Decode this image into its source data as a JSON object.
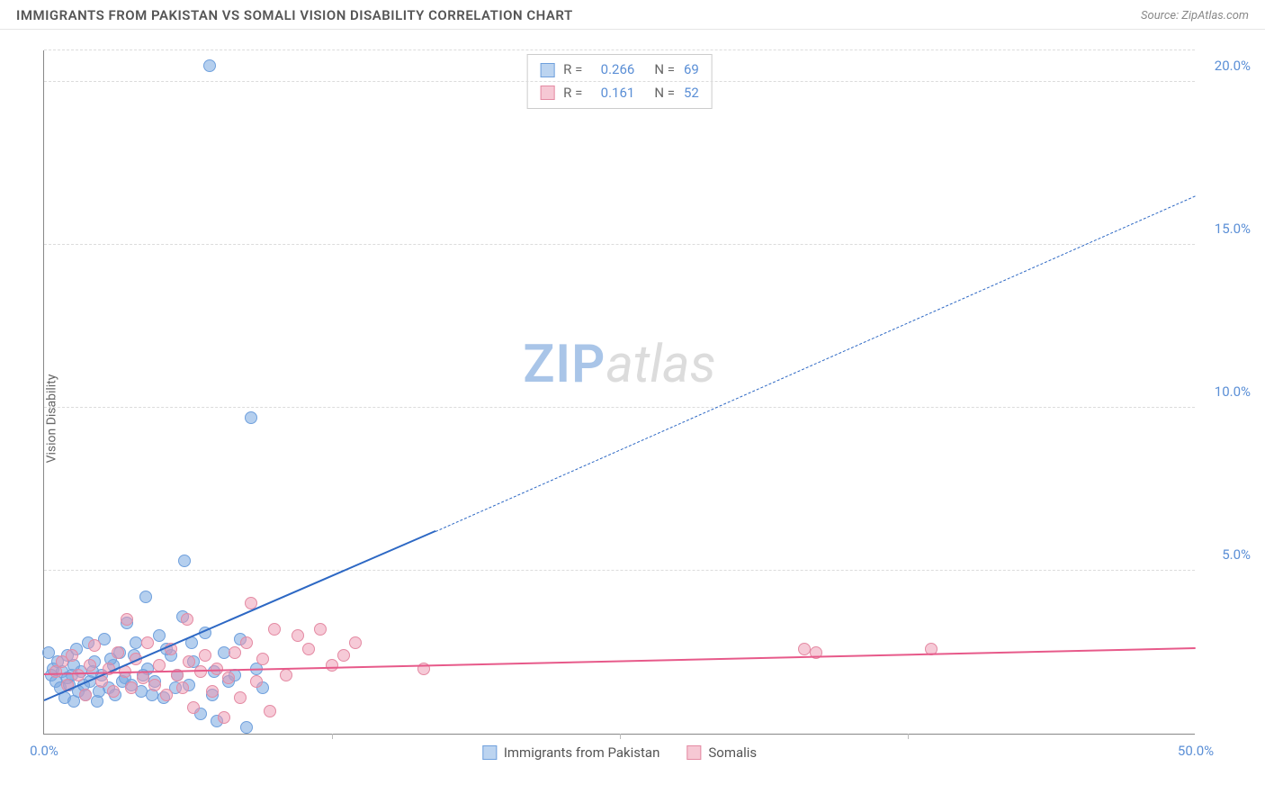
{
  "title": "IMMIGRANTS FROM PAKISTAN VS SOMALI VISION DISABILITY CORRELATION CHART",
  "source": "Source: ZipAtlas.com",
  "y_axis_label": "Vision Disability",
  "watermark": {
    "a": "ZIP",
    "b": "atlas"
  },
  "chart": {
    "type": "scatter",
    "xlim": [
      0,
      50
    ],
    "ylim": [
      0,
      21
    ],
    "x_ticks": [
      0,
      50
    ],
    "x_tick_labels": [
      "0.0%",
      "50.0%"
    ],
    "x_minor_ticks": [
      12.5,
      25,
      37.5
    ],
    "y_ticks": [
      5,
      10,
      15,
      20
    ],
    "y_tick_labels": [
      "5.0%",
      "10.0%",
      "15.0%",
      "20.0%"
    ],
    "y_tick_color": "#5b8fd6",
    "x_tick_color": "#5b8fd6",
    "grid_color": "#dcdcdc",
    "background": "#ffffff",
    "marker_radius": 7,
    "stats_legend": {
      "rows": [
        {
          "swatch_fill": "#bcd4f0",
          "swatch_border": "#6fa0dd",
          "r_label": "R =",
          "r_val": "0.266",
          "n_label": "N =",
          "n_val": "69"
        },
        {
          "swatch_fill": "#f6c8d4",
          "swatch_border": "#e48aa3",
          "r_label": "R =",
          "r_val": "0.161",
          "n_label": "N =",
          "n_val": "52"
        }
      ],
      "value_color": "#5b8fd6",
      "label_color": "#666"
    },
    "series_legend": [
      {
        "swatch_fill": "#bcd4f0",
        "swatch_border": "#6fa0dd",
        "label": "Immigrants from Pakistan"
      },
      {
        "swatch_fill": "#f6c8d4",
        "swatch_border": "#e48aa3",
        "label": "Somalis"
      }
    ],
    "series": [
      {
        "id": "pakistan",
        "fill": "rgba(120,168,224,0.55)",
        "stroke": "#6fa0dd",
        "trend_color": "#2d68c4",
        "trend": {
          "x1": 0,
          "y1": 1.0,
          "x2_solid": 17,
          "y2_solid": 6.2,
          "x2_dash": 50,
          "y2_dash": 16.5
        },
        "points": [
          [
            0.3,
            1.8
          ],
          [
            0.4,
            2.0
          ],
          [
            0.5,
            1.6
          ],
          [
            0.6,
            2.2
          ],
          [
            0.7,
            1.4
          ],
          [
            0.8,
            1.9
          ],
          [
            0.9,
            1.1
          ],
          [
            1.0,
            2.4
          ],
          [
            1.1,
            1.5
          ],
          [
            1.2,
            1.8
          ],
          [
            1.3,
            1.0
          ],
          [
            1.4,
            2.6
          ],
          [
            1.5,
            1.3
          ],
          [
            1.6,
            1.9
          ],
          [
            1.8,
            1.2
          ],
          [
            1.9,
            2.8
          ],
          [
            2.0,
            1.6
          ],
          [
            2.2,
            2.2
          ],
          [
            2.3,
            1.0
          ],
          [
            2.5,
            1.8
          ],
          [
            2.6,
            2.9
          ],
          [
            2.8,
            1.4
          ],
          [
            3.0,
            2.1
          ],
          [
            3.1,
            1.2
          ],
          [
            3.3,
            2.5
          ],
          [
            3.5,
            1.7
          ],
          [
            3.6,
            3.4
          ],
          [
            3.8,
            1.5
          ],
          [
            4.0,
            2.8
          ],
          [
            4.2,
            1.3
          ],
          [
            4.4,
            4.2
          ],
          [
            4.5,
            2.0
          ],
          [
            4.8,
            1.6
          ],
          [
            5.0,
            3.0
          ],
          [
            5.2,
            1.1
          ],
          [
            5.5,
            2.4
          ],
          [
            5.8,
            1.8
          ],
          [
            6.0,
            3.6
          ],
          [
            6.1,
            5.3
          ],
          [
            6.3,
            1.5
          ],
          [
            6.5,
            2.2
          ],
          [
            6.8,
            0.6
          ],
          [
            7.0,
            3.1
          ],
          [
            7.2,
            20.5
          ],
          [
            7.4,
            1.9
          ],
          [
            7.5,
            0.4
          ],
          [
            7.8,
            2.5
          ],
          [
            8.0,
            1.6
          ],
          [
            8.5,
            2.9
          ],
          [
            8.8,
            0.2
          ],
          [
            9.0,
            9.7
          ],
          [
            9.2,
            2.0
          ],
          [
            9.5,
            1.4
          ],
          [
            1.0,
            1.7
          ],
          [
            1.3,
            2.1
          ],
          [
            1.7,
            1.5
          ],
          [
            2.1,
            1.9
          ],
          [
            2.4,
            1.3
          ],
          [
            2.9,
            2.3
          ],
          [
            3.4,
            1.6
          ],
          [
            3.9,
            2.4
          ],
          [
            4.3,
            1.8
          ],
          [
            4.7,
            1.2
          ],
          [
            5.3,
            2.6
          ],
          [
            5.7,
            1.4
          ],
          [
            6.4,
            2.8
          ],
          [
            7.3,
            1.2
          ],
          [
            8.3,
            1.8
          ],
          [
            0.2,
            2.5
          ]
        ]
      },
      {
        "id": "somali",
        "fill": "rgba(238,150,175,0.5)",
        "stroke": "#e48aa3",
        "trend_color": "#e75a8a",
        "trend": {
          "x1": 0,
          "y1": 1.8,
          "x2_solid": 50,
          "y2_solid": 2.6,
          "x2_dash": 50,
          "y2_dash": 2.6
        },
        "points": [
          [
            0.5,
            1.9
          ],
          [
            0.8,
            2.2
          ],
          [
            1.0,
            1.5
          ],
          [
            1.2,
            2.4
          ],
          [
            1.5,
            1.8
          ],
          [
            1.8,
            1.2
          ],
          [
            2.0,
            2.1
          ],
          [
            2.2,
            2.7
          ],
          [
            2.5,
            1.6
          ],
          [
            2.8,
            2.0
          ],
          [
            3.0,
            1.3
          ],
          [
            3.2,
            2.5
          ],
          [
            3.5,
            1.9
          ],
          [
            3.8,
            1.4
          ],
          [
            4.0,
            2.3
          ],
          [
            4.3,
            1.7
          ],
          [
            4.5,
            2.8
          ],
          [
            4.8,
            1.5
          ],
          [
            5.0,
            2.1
          ],
          [
            5.3,
            1.2
          ],
          [
            5.5,
            2.6
          ],
          [
            5.8,
            1.8
          ],
          [
            6.0,
            1.4
          ],
          [
            6.3,
            2.2
          ],
          [
            6.5,
            0.8
          ],
          [
            6.8,
            1.9
          ],
          [
            7.0,
            2.4
          ],
          [
            7.3,
            1.3
          ],
          [
            7.5,
            2.0
          ],
          [
            7.8,
            0.5
          ],
          [
            8.0,
            1.7
          ],
          [
            8.3,
            2.5
          ],
          [
            8.5,
            1.1
          ],
          [
            8.8,
            2.8
          ],
          [
            9.0,
            4.0
          ],
          [
            9.2,
            1.6
          ],
          [
            9.5,
            2.3
          ],
          [
            9.8,
            0.7
          ],
          [
            10.0,
            3.2
          ],
          [
            10.5,
            1.8
          ],
          [
            11.0,
            3.0
          ],
          [
            11.5,
            2.6
          ],
          [
            12.0,
            3.2
          ],
          [
            12.5,
            2.1
          ],
          [
            13.0,
            2.4
          ],
          [
            13.5,
            2.8
          ],
          [
            16.5,
            2.0
          ],
          [
            33.0,
            2.6
          ],
          [
            33.5,
            2.5
          ],
          [
            38.5,
            2.6
          ],
          [
            3.6,
            3.5
          ],
          [
            6.2,
            3.5
          ]
        ]
      }
    ]
  }
}
